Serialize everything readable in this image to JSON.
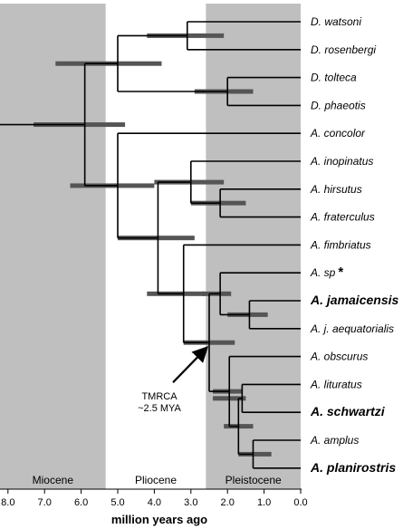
{
  "colors": {
    "epoch_shade": "#bfbfbf",
    "branch": "#000000",
    "ci_bar": "#555555",
    "background": "#ffffff"
  },
  "epochs": [
    {
      "name": "Miocene",
      "from": 8.5,
      "to": 5.33,
      "shaded": true
    },
    {
      "name": "Pliocene",
      "from": 5.33,
      "to": 2.59,
      "shaded": false
    },
    {
      "name": "Pleistocene",
      "from": 2.59,
      "to": 0.0,
      "shaded": true
    }
  ],
  "axis": {
    "title": "million years ago",
    "ticks": [
      {
        "value": 8.0,
        "label": "8.0"
      },
      {
        "value": 7.0,
        "label": "7.0"
      },
      {
        "value": 6.0,
        "label": "6.0"
      },
      {
        "value": 5.0,
        "label": "5.0"
      },
      {
        "value": 4.0,
        "label": "4.0"
      },
      {
        "value": 3.0,
        "label": "3.0"
      },
      {
        "value": 2.0,
        "label": "2.0"
      },
      {
        "value": 1.0,
        "label": "1.0"
      },
      {
        "value": 0.0,
        "label": "0.0"
      }
    ]
  },
  "tips": [
    {
      "label": "D. watsoni",
      "bold": false
    },
    {
      "label": "D. rosenbergi",
      "bold": false
    },
    {
      "label": "D. tolteca",
      "bold": false
    },
    {
      "label": "D. phaeotis",
      "bold": false
    },
    {
      "label": "A. concolor",
      "bold": false
    },
    {
      "label": "A. inopinatus",
      "bold": false
    },
    {
      "label": "A. hirsutus",
      "bold": false
    },
    {
      "label": "A. fraterculus",
      "bold": false
    },
    {
      "label": "A. fimbriatus",
      "bold": false
    },
    {
      "label": "A. sp",
      "bold": false,
      "marker": "*"
    },
    {
      "label": "A. jamaicensis",
      "bold": true
    },
    {
      "label": "A. j. aequatorialis",
      "bold": false
    },
    {
      "label": "A. obscurus",
      "bold": false
    },
    {
      "label": "A. lituratus",
      "bold": false
    },
    {
      "label": "A. schwartzi",
      "bold": true
    },
    {
      "label": "A. amplus",
      "bold": false
    },
    {
      "label": "A. planirostris",
      "bold": true
    }
  ],
  "tree": {
    "root_stem_age": 8.5,
    "nodes": [
      {
        "id": "n_dw_dr",
        "age": 3.1,
        "ci": [
          2.1,
          4.2
        ],
        "children": [
          0,
          1
        ]
      },
      {
        "id": "n_dt_dp",
        "age": 2.0,
        "ci": [
          1.3,
          2.9
        ],
        "children": [
          2,
          3
        ]
      },
      {
        "id": "n_derma",
        "age": 5.0,
        "ci": [
          3.8,
          6.7
        ],
        "children": [
          "n_dw_dr",
          "n_dt_dp"
        ]
      },
      {
        "id": "n_hir_fra",
        "age": 2.2,
        "ci": [
          1.5,
          3.0
        ],
        "children": [
          6,
          7
        ]
      },
      {
        "id": "n_ino_grp",
        "age": 3.0,
        "ci": [
          2.1,
          4.0
        ],
        "children": [
          5,
          "n_hir_fra"
        ]
      },
      {
        "id": "n_jam",
        "age": 1.4,
        "ci": [
          0.9,
          2.0
        ],
        "children": [
          10,
          11
        ]
      },
      {
        "id": "n_sp_jam",
        "age": 2.2,
        "ci": [
          1.9,
          2.7
        ],
        "children": [
          9,
          "n_jam"
        ]
      },
      {
        "id": "n_lit_sch",
        "age": 1.6,
        "ci": [
          1.5,
          2.4
        ],
        "children": [
          13,
          14
        ]
      },
      {
        "id": "n_amp_pla",
        "age": 1.3,
        "ci": [
          0.8,
          1.7
        ],
        "children": [
          15,
          16
        ]
      },
      {
        "id": "n_lit_amp",
        "age": 1.7,
        "ci": [
          1.3,
          2.1
        ],
        "children": [
          "n_lit_sch",
          "n_amp_pla"
        ]
      },
      {
        "id": "n_obs_grp",
        "age": 1.95,
        "ci": [
          1.6,
          2.4
        ],
        "children": [
          12,
          "n_lit_amp"
        ]
      },
      {
        "id": "n_tmrca",
        "age": 2.5,
        "ci": [
          1.8,
          3.2
        ],
        "children": [
          "n_sp_jam",
          "n_obs_grp"
        ]
      },
      {
        "id": "n_fim_grp",
        "age": 3.2,
        "ci": [
          2.6,
          4.2
        ],
        "children": [
          8,
          "n_tmrca"
        ]
      },
      {
        "id": "n_ino_fim",
        "age": 3.9,
        "ci": [
          2.9,
          5.0
        ],
        "children": [
          "n_ino_grp",
          "n_fim_grp"
        ]
      },
      {
        "id": "n_artibeus",
        "age": 5.0,
        "ci": [
          4.0,
          6.3
        ],
        "children": [
          4,
          "n_ino_fim"
        ]
      },
      {
        "id": "n_root",
        "age": 5.9,
        "ci": [
          4.8,
          7.3
        ],
        "children": [
          "n_derma",
          "n_artibeus"
        ]
      }
    ]
  },
  "annotation": {
    "line1": "TMRCA",
    "line2": "~2.5 MYA",
    "target_node": "n_tmrca"
  }
}
